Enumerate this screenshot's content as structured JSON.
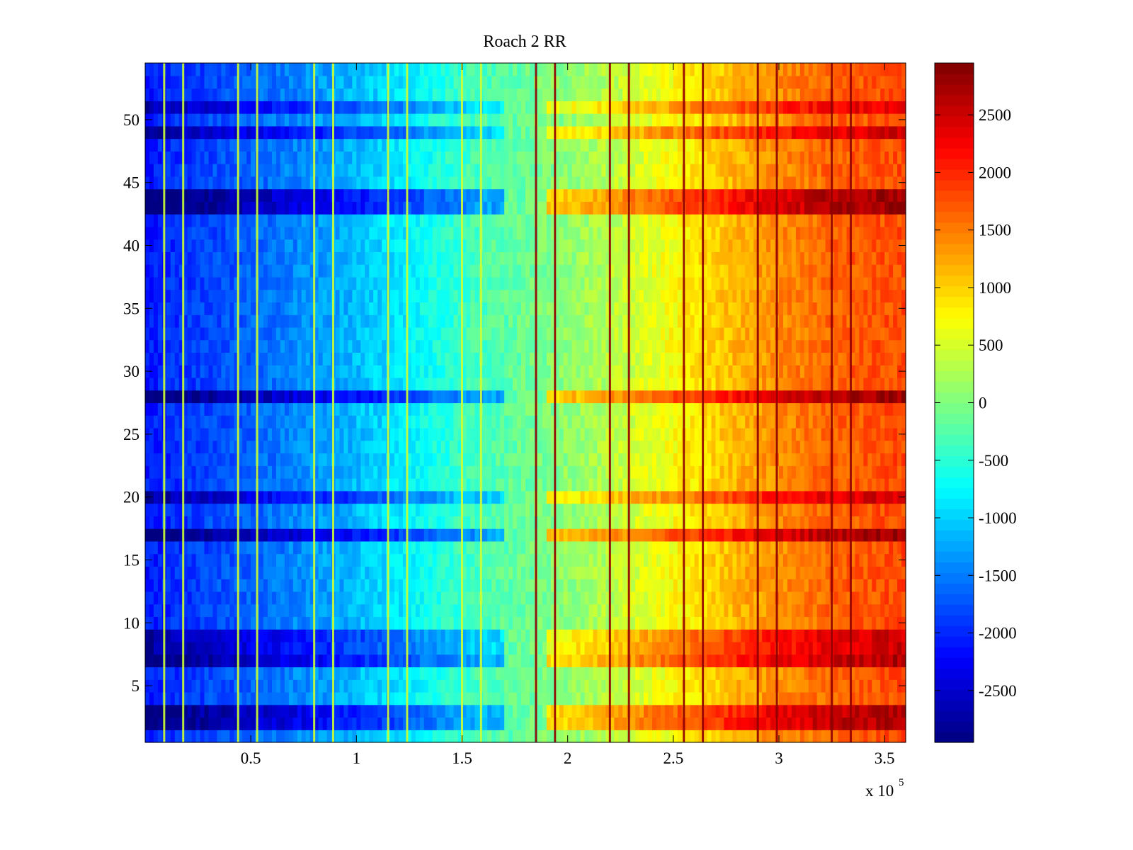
{
  "chart_data": {
    "type": "heatmap",
    "title": "Roach 2 RR",
    "xlabel": "",
    "ylabel": "",
    "x_multiplier": {
      "prefix": "x 10",
      "exponent": "5"
    },
    "xlim": [
      0,
      360000
    ],
    "ylim": [
      0.5,
      54.5
    ],
    "rows": 54,
    "x_ticks": [
      {
        "value": 50000,
        "label": "0.5"
      },
      {
        "value": 100000,
        "label": "1"
      },
      {
        "value": 150000,
        "label": "1.5"
      },
      {
        "value": 200000,
        "label": "2"
      },
      {
        "value": 250000,
        "label": "2.5"
      },
      {
        "value": 300000,
        "label": "3"
      },
      {
        "value": 350000,
        "label": "3.5"
      }
    ],
    "y_ticks": [
      {
        "value": 5,
        "label": "5"
      },
      {
        "value": 10,
        "label": "10"
      },
      {
        "value": 15,
        "label": "15"
      },
      {
        "value": 20,
        "label": "20"
      },
      {
        "value": 25,
        "label": "25"
      },
      {
        "value": 30,
        "label": "30"
      },
      {
        "value": 35,
        "label": "35"
      },
      {
        "value": 40,
        "label": "40"
      },
      {
        "value": 45,
        "label": "45"
      },
      {
        "value": 50,
        "label": "50"
      }
    ],
    "colorbar": {
      "colormap": "jet",
      "clim": [
        -2950,
        2950
      ],
      "ticks": [
        {
          "value": 2500,
          "label": "2500"
        },
        {
          "value": 2000,
          "label": "2000"
        },
        {
          "value": 1500,
          "label": "1500"
        },
        {
          "value": 1000,
          "label": "1000"
        },
        {
          "value": 500,
          "label": "500"
        },
        {
          "value": 0,
          "label": "0"
        },
        {
          "value": -500,
          "label": "-500"
        },
        {
          "value": -1000,
          "label": "-1000"
        },
        {
          "value": -1500,
          "label": "-1500"
        },
        {
          "value": -2000,
          "label": "-2000"
        },
        {
          "value": -2500,
          "label": "-2500"
        }
      ]
    },
    "trend": {
      "x": [
        0,
        20000,
        50000,
        90000,
        125000,
        150000,
        185000,
        215000,
        255000,
        290000,
        325000,
        360000
      ],
      "value": [
        -2100,
        -1900,
        -1650,
        -1250,
        -800,
        -400,
        -80,
        250,
        800,
        1300,
        1650,
        1800
      ]
    },
    "row_offsets": {
      "rows": [
        2,
        3,
        7,
        8,
        9,
        17,
        20,
        28,
        43,
        44,
        49,
        51
      ],
      "delta": [
        900,
        900,
        900,
        700,
        700,
        1000,
        700,
        1000,
        1000,
        1000,
        700,
        600
      ]
    },
    "vertical_stripes": {
      "x": [
        9000,
        18000,
        44000,
        53000,
        80000,
        89000,
        115000,
        124000,
        150000,
        159000,
        185000,
        194000,
        220000,
        229000,
        255000,
        264000,
        290000,
        299000,
        325000,
        334000
      ],
      "left_value": 450,
      "right_value": 2850
    },
    "grid": false,
    "legend": "colorbar-right"
  }
}
